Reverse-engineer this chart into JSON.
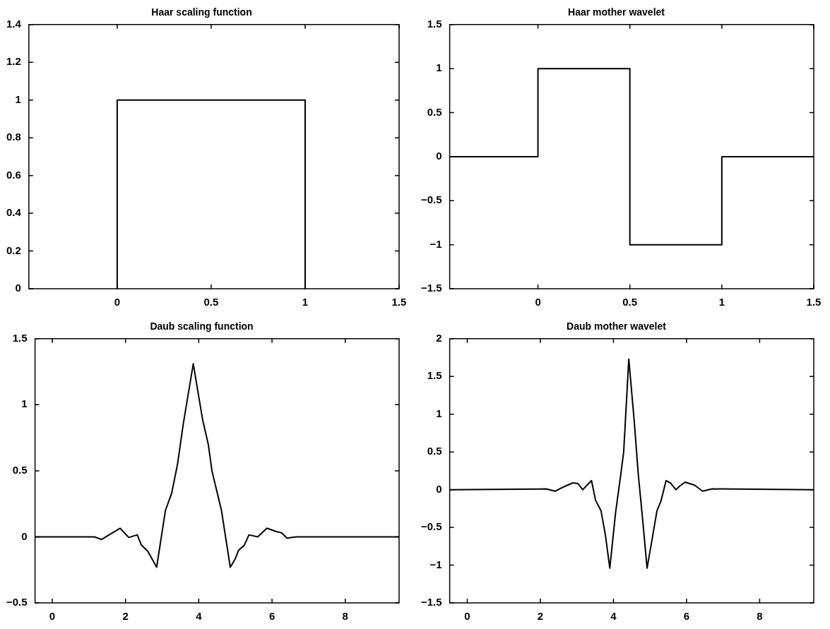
{
  "chart_data": [
    {
      "type": "line",
      "title": "Haar scaling function",
      "xlim": [
        -0.47,
        1.5
      ],
      "xticks": [
        0,
        0.5,
        1,
        1.5
      ],
      "ylim": [
        0,
        1.4
      ],
      "yticks": [
        0,
        0.2,
        0.4,
        0.6,
        0.8,
        1,
        1.2,
        1.4
      ],
      "series": [
        {
          "color": "#000000",
          "x": [
            0,
            0,
            1,
            1
          ],
          "values": [
            0,
            1,
            1,
            0
          ]
        }
      ]
    },
    {
      "type": "line",
      "title": "Haar mother wavelet",
      "xlim": [
        -0.48,
        1.5
      ],
      "xticks": [
        0,
        0.5,
        1,
        1.5
      ],
      "ylim": [
        -1.5,
        1.5
      ],
      "yticks": [
        -1.5,
        -1,
        -0.5,
        0,
        0.5,
        1,
        1.5
      ],
      "series": [
        {
          "color": "#000000",
          "x": [
            -0.48,
            0,
            0,
            0.5,
            0.5,
            1,
            1,
            1.5
          ],
          "values": [
            0,
            0,
            1,
            1,
            -1,
            -1,
            0,
            0
          ]
        }
      ]
    },
    {
      "type": "line",
      "title": "Daub scaling function",
      "xlim": [
        -0.47,
        9.47
      ],
      "xticks": [
        0,
        2,
        4,
        6,
        8
      ],
      "ylim": [
        -0.5,
        1.5
      ],
      "yticks": [
        -0.5,
        0,
        0.5,
        1,
        1.5
      ],
      "series": [
        {
          "color": "#000000",
          "x": [
            -0.47,
            1.15,
            1.35,
            1.52,
            1.85,
            2.09,
            2.32,
            2.43,
            2.61,
            2.85,
            3.09,
            3.26,
            3.42,
            3.58,
            3.85,
            4.11,
            4.26,
            4.36,
            4.62,
            4.86,
            4.99,
            5.09,
            5.24,
            5.37,
            5.61,
            5.86,
            6.12,
            6.26,
            6.41,
            6.66,
            9.47
          ],
          "values": [
            0,
            0,
            -0.02,
            0.01,
            0.065,
            -0.005,
            0.015,
            -0.06,
            -0.11,
            -0.23,
            0.2,
            0.33,
            0.55,
            0.86,
            1.31,
            0.88,
            0.7,
            0.5,
            0.2,
            -0.23,
            -0.17,
            -0.1,
            -0.065,
            0.015,
            0,
            0.065,
            0.04,
            0.03,
            -0.01,
            0,
            0
          ]
        }
      ]
    },
    {
      "type": "line",
      "title": "Daub mother wavelet",
      "xlim": [
        -0.48,
        9.48
      ],
      "xticks": [
        0,
        2,
        4,
        6,
        8
      ],
      "ylim": [
        -1.5,
        2
      ],
      "yticks": [
        -1.5,
        -1,
        -0.5,
        0,
        0.5,
        1,
        1.5,
        2
      ],
      "series": [
        {
          "color": "#000000",
          "x": [
            -0.48,
            2.15,
            2.41,
            2.52,
            2.7,
            2.89,
            3.03,
            3.16,
            3.4,
            3.51,
            3.66,
            3.78,
            3.9,
            4.06,
            4.2,
            4.28,
            4.42,
            4.57,
            4.68,
            4.79,
            4.92,
            5.06,
            5.19,
            5.3,
            5.44,
            5.56,
            5.71,
            5.82,
            5.96,
            6.22,
            6.44,
            6.7,
            9.48
          ],
          "values": [
            0,
            0.01,
            -0.02,
            0.01,
            0.05,
            0.09,
            0.08,
            0,
            0.12,
            -0.14,
            -0.28,
            -0.6,
            -1.04,
            -0.3,
            0.2,
            0.5,
            1.73,
            0.9,
            0.2,
            -0.35,
            -1.04,
            -0.65,
            -0.28,
            -0.15,
            0.12,
            0.09,
            0,
            0.05,
            0.1,
            0.06,
            -0.02,
            0.01,
            0
          ]
        }
      ]
    }
  ]
}
